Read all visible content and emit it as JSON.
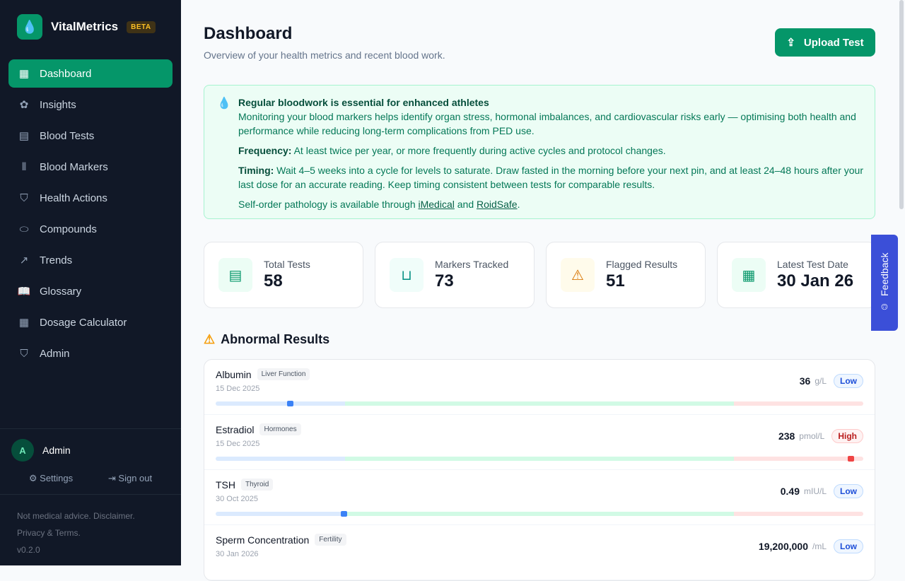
{
  "app": {
    "name": "VitalMetrics",
    "badge": "BETA"
  },
  "sidebar": {
    "items": [
      {
        "label": "Dashboard",
        "icon": "grid-icon",
        "glyph": "▦"
      },
      {
        "label": "Insights",
        "icon": "brain-icon",
        "glyph": "✿"
      },
      {
        "label": "Blood Tests",
        "icon": "file-text-icon",
        "glyph": "▤"
      },
      {
        "label": "Blood Markers",
        "icon": "test-tubes-icon",
        "glyph": "⫴"
      },
      {
        "label": "Health Actions",
        "icon": "shield-check-icon",
        "glyph": "⛉"
      },
      {
        "label": "Compounds",
        "icon": "pill-icon",
        "glyph": "⬭"
      },
      {
        "label": "Trends",
        "icon": "trending-up-icon",
        "glyph": "↗"
      },
      {
        "label": "Glossary",
        "icon": "book-open-icon",
        "glyph": "📖"
      },
      {
        "label": "Dosage Calculator",
        "icon": "calculator-icon",
        "glyph": "▦"
      },
      {
        "label": "Admin",
        "icon": "shield-icon",
        "glyph": "⛉"
      }
    ],
    "user": {
      "initial": "A",
      "name": "Admin",
      "settings": "Settings",
      "signout": "Sign out"
    },
    "footer": {
      "line1": "Not medical advice. Disclaimer.",
      "line2": "Privacy & Terms.",
      "version": "v0.2.0"
    }
  },
  "header": {
    "title": "Dashboard",
    "subtitle": "Overview of your health metrics and recent blood work.",
    "upload": "Upload Test"
  },
  "info": {
    "title": "Regular bloodwork is essential for enhanced athletes",
    "body": "Monitoring your blood markers helps identify organ stress, hormonal imbalances, and cardiovascular risks early — optimising both health and performance while reducing long-term complications from PED use.",
    "freq_label": "Frequency:",
    "freq": " At least twice per year, or more frequently during active cycles and protocol changes.",
    "timing_label": "Timing:",
    "timing": " Wait 4–5 weeks into a cycle for levels to saturate. Draw fasted in the morning before your next pin, and at least 24–48 hours after your last dose for an accurate reading. Keep timing consistent between tests for comparable results.",
    "order_prefix": "Self-order pathology is available through ",
    "link1": "iMedical",
    "and": " and ",
    "link2": "RoidSafe",
    "end": "."
  },
  "stats": [
    {
      "label": "Total Tests",
      "value": "58",
      "icon": "file-icon",
      "color": "#059669",
      "bg": "#ecfdf5"
    },
    {
      "label": "Markers Tracked",
      "value": "73",
      "icon": "beaker-icon",
      "color": "#0d9488",
      "bg": "#f0fdfa"
    },
    {
      "label": "Flagged Results",
      "value": "51",
      "icon": "warning-icon",
      "color": "#d97706",
      "bg": "#fffbeb"
    },
    {
      "label": "Latest Test Date",
      "value": "30 Jan 26",
      "icon": "calendar-icon",
      "color": "#059669",
      "bg": "#ecfdf5"
    }
  ],
  "abnormal": {
    "title": "Abnormal Results",
    "rows": [
      {
        "name": "Albumin",
        "category": "Liver Function",
        "date": "15 Dec 2025",
        "value": "36",
        "unit": "g/L",
        "status": "Low",
        "position_pct": 11.5
      },
      {
        "name": "Estradiol",
        "category": "Hormones",
        "date": "15 Dec 2025",
        "value": "238",
        "unit": "pmol/L",
        "status": "High",
        "position_pct": 98
      },
      {
        "name": "TSH",
        "category": "Thyroid",
        "date": "30 Oct 2025",
        "value": "0.49",
        "unit": "mIU/L",
        "status": "Low",
        "position_pct": 19.8
      },
      {
        "name": "Sperm Concentration",
        "category": "Fertility",
        "date": "30 Jan 2026",
        "value": "19,200,000",
        "unit": "/mL",
        "status": "Low"
      }
    ]
  },
  "feedback": "Feedback"
}
